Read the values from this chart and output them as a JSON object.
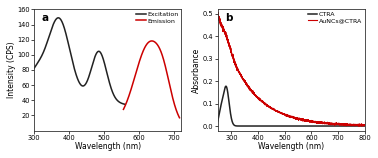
{
  "panel_a": {
    "label": "a",
    "xlabel": "Wavelength (nm)",
    "ylabel": "Intensity (CPS)",
    "xlim": [
      300,
      720
    ],
    "ylim": [
      0,
      160
    ],
    "yticks": [
      20,
      40,
      60,
      80,
      100,
      120,
      140,
      160
    ],
    "xticks": [
      300,
      400,
      500,
      600,
      700
    ],
    "excitation_color": "#222222",
    "emission_color": "#cc0000",
    "legend_labels": [
      "Excitation",
      "Emission"
    ]
  },
  "panel_b": {
    "label": "b",
    "xlabel": "Wavelength (nm)",
    "ylabel": "Absorbance",
    "xlim": [
      248,
      800
    ],
    "ylim": [
      -0.02,
      0.52
    ],
    "yticks": [
      0.0,
      0.1,
      0.2,
      0.3,
      0.4,
      0.5
    ],
    "xticks": [
      300,
      400,
      500,
      600,
      700,
      800
    ],
    "ctra_color": "#222222",
    "auncs_color": "#cc0000",
    "legend_labels": [
      "CTRA",
      "AuNCs@CTRA"
    ]
  },
  "background_color": "#ffffff",
  "figure_facecolor": "#ffffff"
}
